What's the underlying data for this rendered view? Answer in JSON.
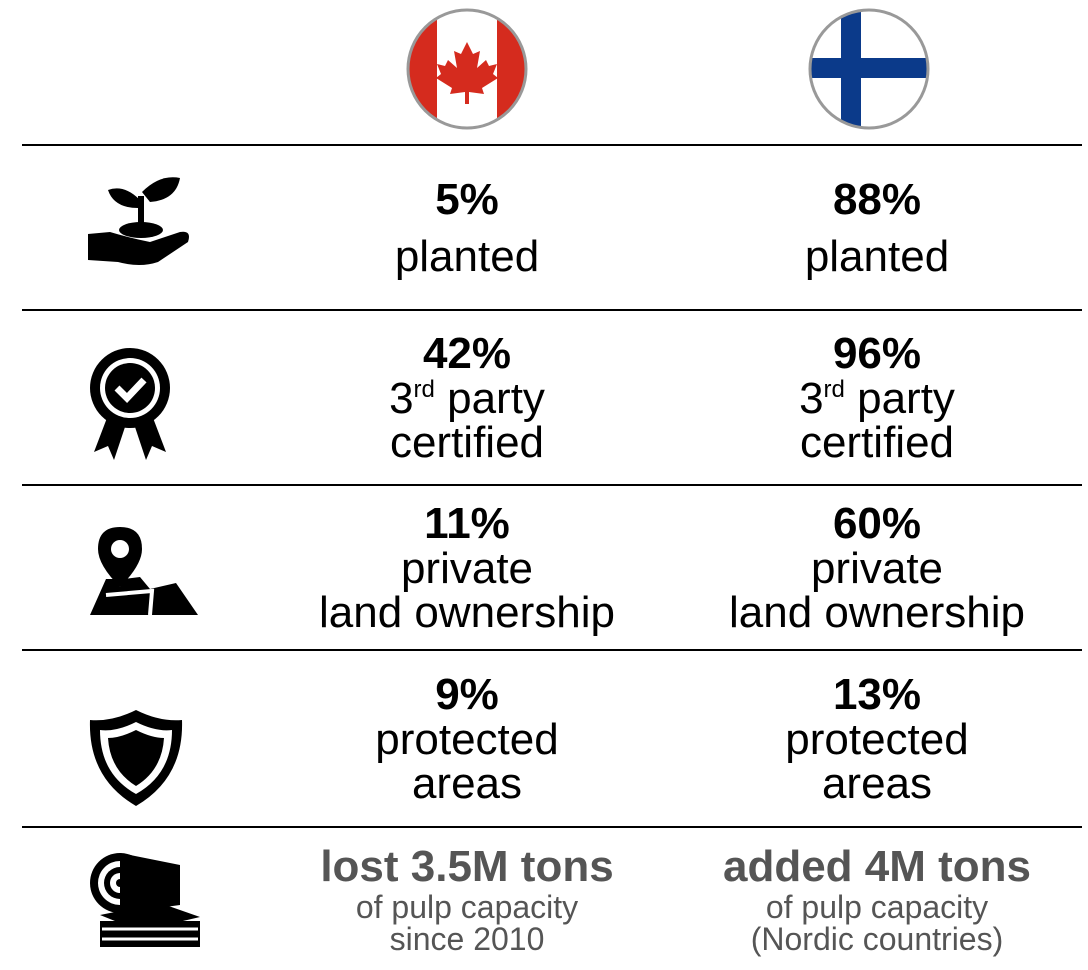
{
  "columns": {
    "canada": "Canada",
    "finland": "Finland"
  },
  "rows": [
    {
      "canada": {
        "headline": "5%",
        "lines": [
          "planted"
        ]
      },
      "finland": {
        "headline": "88%",
        "lines": [
          "planted"
        ]
      }
    },
    {
      "canada": {
        "headline": "42%",
        "lines": [
          {
            "number": "3",
            "suffix": "rd",
            "text": " party"
          },
          "certified"
        ]
      },
      "finland": {
        "headline": "96%",
        "lines": [
          {
            "number": "3",
            "suffix": "rd",
            "text": " party"
          },
          "certified"
        ]
      }
    },
    {
      "canada": {
        "headline": "11%",
        "lines": [
          "private",
          "land ownership"
        ]
      },
      "finland": {
        "headline": "60%",
        "lines": [
          "private",
          "land ownership"
        ]
      }
    },
    {
      "canada": {
        "headline": "9%",
        "lines": [
          "protected",
          "areas"
        ]
      },
      "finland": {
        "headline": "13%",
        "lines": [
          "protected",
          "areas"
        ]
      }
    },
    {
      "canada": {
        "headline": "lost 3.5M tons",
        "lines": [
          "of pulp capacity",
          "since 2010"
        ]
      },
      "finland": {
        "headline": "added 4M tons",
        "lines": [
          "of pulp capacity",
          "(Nordic countries)"
        ]
      }
    }
  ]
}
